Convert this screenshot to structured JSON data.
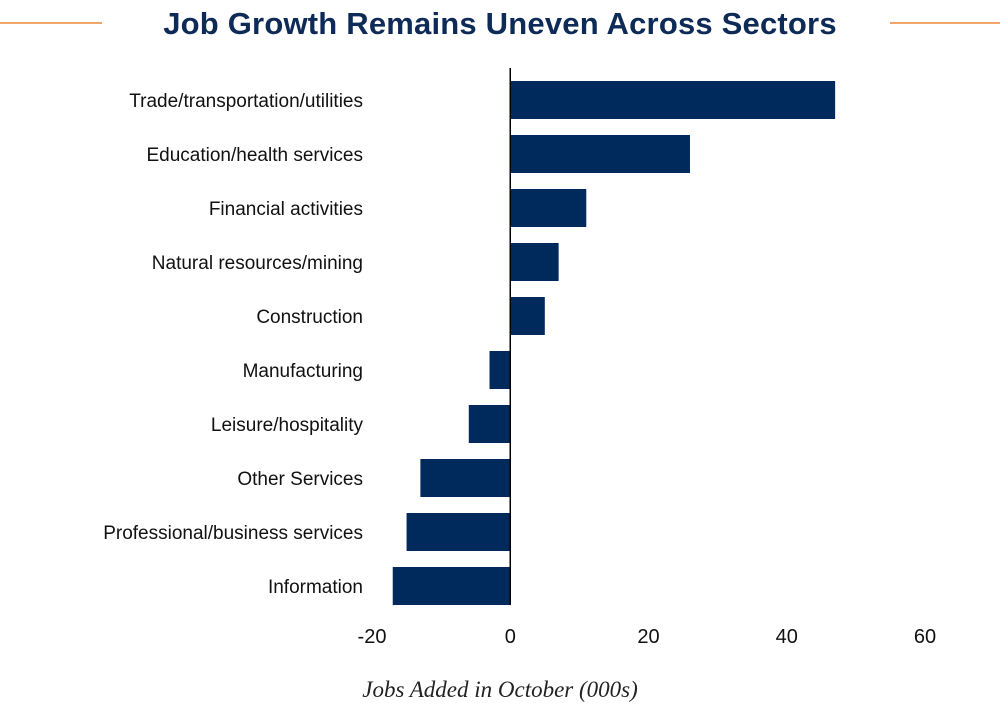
{
  "chart_data": {
    "type": "bar",
    "orientation": "horizontal",
    "title": "Job Growth Remains Uneven Across Sectors",
    "xlabel": "Jobs Added in October (000s)",
    "ylabel": "",
    "categories": [
      "Trade/transportation/utilities",
      "Education/health services",
      "Financial activities",
      "Natural resources/mining",
      "Construction",
      "Manufacturing",
      "Leisure/hospitality",
      "Other Services",
      "Professional/business services",
      "Information"
    ],
    "values": [
      47,
      26,
      11,
      7,
      5,
      -3,
      -6,
      -13,
      -15,
      -17
    ],
    "xlim": [
      -20,
      60
    ],
    "xticks": [
      "-20",
      "0",
      "20",
      "40",
      "60"
    ],
    "grid": false,
    "legend": "none",
    "colors": {
      "bar": "#002a5c",
      "title": "#0e2a57",
      "accent_rule": "#f0a469"
    }
  }
}
